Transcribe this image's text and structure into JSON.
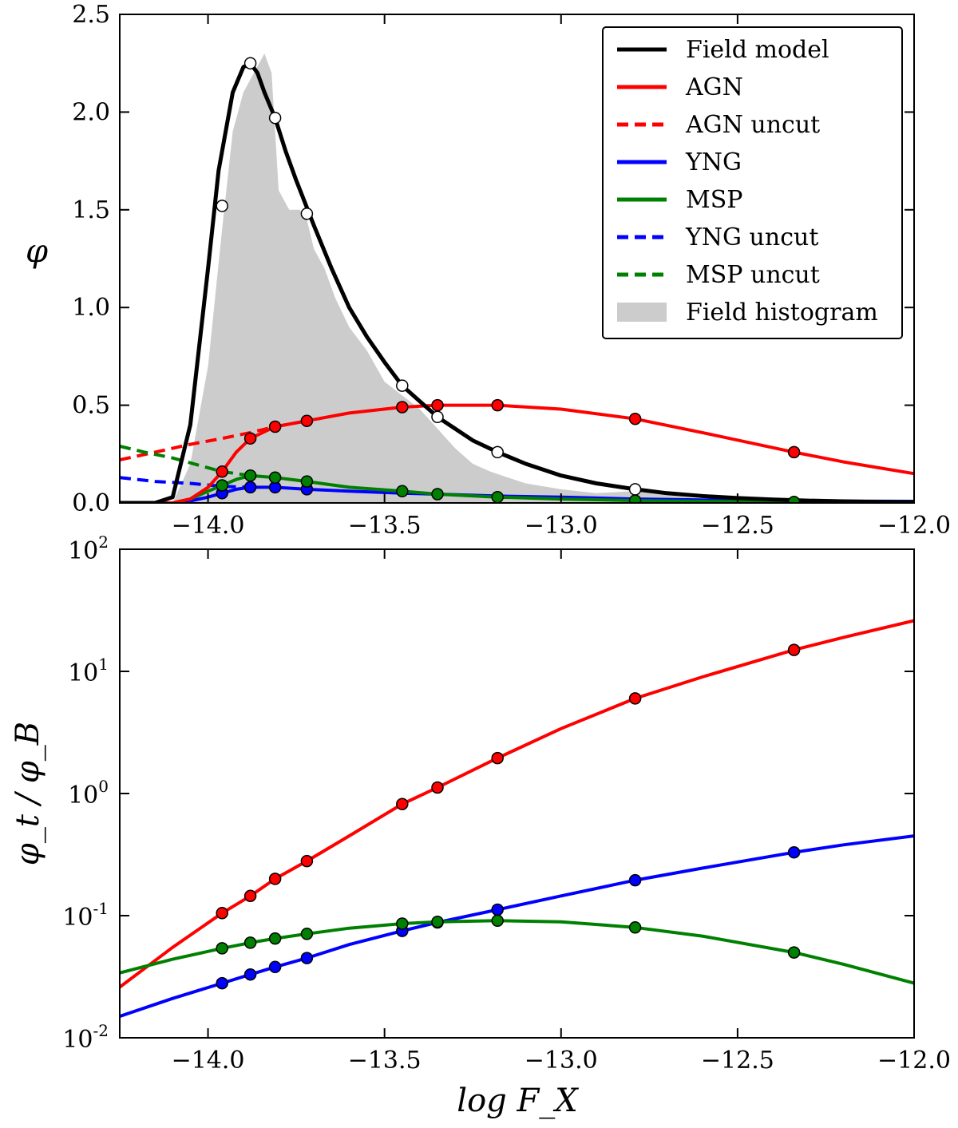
{
  "chart_data": [
    {
      "type": "line",
      "panel": "top",
      "title": "",
      "xlabel": "",
      "ylabel": "φ",
      "xlim": [
        -14.25,
        -12.0
      ],
      "ylim": [
        0.0,
        2.5
      ],
      "xticks": [
        -14.0,
        -13.5,
        -13.0,
        -12.5,
        -12.0
      ],
      "xtick_labels": [
        "−14.0",
        "−13.5",
        "−13.0",
        "−12.5",
        "−12.0"
      ],
      "yticks": [
        0.0,
        0.5,
        1.0,
        1.5,
        2.0,
        2.5
      ],
      "ytick_labels": [
        "0.0",
        "0.5",
        "1.0",
        "1.5",
        "2.0",
        "2.5"
      ],
      "legend_position": "top-right",
      "legend": [
        {
          "key": "field_model",
          "label": "Field model",
          "color": "#000000",
          "style": "solid"
        },
        {
          "key": "agn",
          "label": "AGN",
          "color": "#ff0000",
          "style": "solid"
        },
        {
          "key": "agn_uncut",
          "label": "AGN uncut",
          "color": "#ff0000",
          "style": "dashed"
        },
        {
          "key": "yng",
          "label": "YNG",
          "color": "#0000ff",
          "style": "solid"
        },
        {
          "key": "msp",
          "label": "MSP",
          "color": "#008000",
          "style": "solid"
        },
        {
          "key": "yng_uncut",
          "label": "YNG uncut",
          "color": "#0000ff",
          "style": "dashed"
        },
        {
          "key": "msp_uncut",
          "label": "MSP uncut",
          "color": "#008000",
          "style": "dashed"
        },
        {
          "key": "histogram",
          "label": "Field histogram",
          "color": "#cccccc",
          "style": "fill"
        }
      ],
      "histogram": {
        "name": "Field histogram",
        "color": "#cccccc",
        "x": [
          -14.1,
          -14.05,
          -14.0,
          -13.96,
          -13.93,
          -13.9,
          -13.87,
          -13.84,
          -13.82,
          -13.8,
          -13.77,
          -13.74,
          -13.72,
          -13.7,
          -13.67,
          -13.64,
          -13.6,
          -13.55,
          -13.5,
          -13.45,
          -13.4,
          -13.35,
          -13.3,
          -13.25,
          -13.2,
          -13.15,
          -13.1,
          -13.0,
          -12.9,
          -12.8,
          -12.7,
          -12.6,
          -12.5,
          -12.4
        ],
        "y": [
          0.0,
          0.2,
          0.7,
          1.4,
          1.9,
          2.1,
          2.2,
          2.3,
          2.2,
          1.6,
          1.5,
          1.5,
          1.45,
          1.3,
          1.2,
          1.05,
          0.9,
          0.78,
          0.62,
          0.55,
          0.48,
          0.38,
          0.28,
          0.2,
          0.16,
          0.13,
          0.1,
          0.07,
          0.05,
          0.06,
          0.04,
          0.02,
          0.01,
          0.0
        ]
      },
      "series": [
        {
          "key": "field_model",
          "name": "Field model",
          "color": "#000000",
          "style": "solid",
          "x": [
            -14.25,
            -14.2,
            -14.15,
            -14.1,
            -14.05,
            -14.0,
            -13.97,
            -13.93,
            -13.9,
            -13.88,
            -13.86,
            -13.84,
            -13.81,
            -13.78,
            -13.75,
            -13.7,
            -13.65,
            -13.6,
            -13.55,
            -13.5,
            -13.45,
            -13.4,
            -13.35,
            -13.3,
            -13.25,
            -13.18,
            -13.1,
            -13.0,
            -12.9,
            -12.79,
            -12.7,
            -12.6,
            -12.5,
            -12.4,
            -12.3,
            -12.2,
            -12.1,
            -12.0
          ],
          "y": [
            0.0,
            0.0,
            0.0,
            0.03,
            0.4,
            1.2,
            1.7,
            2.1,
            2.23,
            2.25,
            2.2,
            2.1,
            1.97,
            1.8,
            1.65,
            1.42,
            1.2,
            1.0,
            0.85,
            0.72,
            0.6,
            0.52,
            0.44,
            0.38,
            0.32,
            0.26,
            0.2,
            0.14,
            0.1,
            0.07,
            0.05,
            0.035,
            0.025,
            0.017,
            0.012,
            0.008,
            0.005,
            0.004
          ],
          "markers": {
            "x": [
              -13.96,
              -13.88,
              -13.81,
              -13.72,
              -13.45,
              -13.35,
              -13.18,
              -12.79
            ],
            "y": [
              1.52,
              2.25,
              1.97,
              1.48,
              0.6,
              0.44,
              0.26,
              0.07
            ],
            "fill": "#ffffff"
          }
        },
        {
          "key": "agn",
          "name": "AGN",
          "color": "#ff0000",
          "style": "solid",
          "x": [
            -14.25,
            -14.1,
            -14.05,
            -14.0,
            -13.96,
            -13.92,
            -13.88,
            -13.81,
            -13.72,
            -13.6,
            -13.45,
            -13.35,
            -13.25,
            -13.18,
            -13.0,
            -12.79,
            -12.6,
            -12.34,
            -12.2,
            -12.0
          ],
          "y": [
            0.0,
            0.0,
            0.02,
            0.08,
            0.16,
            0.26,
            0.33,
            0.39,
            0.42,
            0.46,
            0.49,
            0.5,
            0.5,
            0.5,
            0.48,
            0.43,
            0.36,
            0.26,
            0.21,
            0.15
          ],
          "markers": {
            "x": [
              -13.96,
              -13.88,
              -13.81,
              -13.72,
              -13.45,
              -13.35,
              -13.18,
              -12.79,
              -12.34
            ],
            "y": [
              0.16,
              0.33,
              0.39,
              0.42,
              0.49,
              0.5,
              0.5,
              0.43,
              0.26
            ],
            "fill": "#ff0000"
          }
        },
        {
          "key": "agn_uncut",
          "name": "AGN uncut",
          "color": "#ff0000",
          "style": "dashed",
          "x": [
            -14.25,
            -14.15,
            -14.05,
            -13.96,
            -13.88,
            -13.81,
            -13.72
          ],
          "y": [
            0.22,
            0.26,
            0.3,
            0.33,
            0.36,
            0.39,
            0.42
          ]
        },
        {
          "key": "yng",
          "name": "YNG",
          "color": "#0000ff",
          "style": "solid",
          "x": [
            -14.25,
            -14.1,
            -14.05,
            -14.0,
            -13.96,
            -13.92,
            -13.88,
            -13.81,
            -13.72,
            -13.6,
            -13.45,
            -13.35,
            -13.18,
            -13.0,
            -12.79,
            -12.6,
            -12.34,
            -12.0
          ],
          "y": [
            0.0,
            0.0,
            0.01,
            0.03,
            0.05,
            0.07,
            0.08,
            0.08,
            0.07,
            0.06,
            0.05,
            0.045,
            0.035,
            0.03,
            0.02,
            0.015,
            0.01,
            0.008
          ],
          "markers": {
            "x": [
              -13.96,
              -13.88,
              -13.81,
              -13.72
            ],
            "y": [
              0.05,
              0.08,
              0.08,
              0.07
            ],
            "fill": "#0000ff"
          }
        },
        {
          "key": "msp",
          "name": "MSP",
          "color": "#008000",
          "style": "solid",
          "x": [
            -14.25,
            -14.1,
            -14.05,
            -14.0,
            -13.96,
            -13.92,
            -13.88,
            -13.81,
            -13.72,
            -13.6,
            -13.45,
            -13.35,
            -13.18,
            -13.0,
            -12.79,
            -12.6,
            -12.34,
            -12.0
          ],
          "y": [
            0.0,
            0.0,
            0.02,
            0.06,
            0.09,
            0.12,
            0.14,
            0.13,
            0.11,
            0.08,
            0.06,
            0.045,
            0.03,
            0.02,
            0.012,
            0.008,
            0.005,
            0.003
          ],
          "markers": {
            "x": [
              -13.96,
              -13.88,
              -13.81,
              -13.72,
              -13.45,
              -13.35,
              -13.18,
              -12.79,
              -12.34
            ],
            "y": [
              0.09,
              0.14,
              0.13,
              0.11,
              0.06,
              0.045,
              0.03,
              0.012,
              0.005
            ],
            "fill": "#008000"
          }
        },
        {
          "key": "yng_uncut",
          "name": "YNG uncut",
          "color": "#0000ff",
          "style": "dashed",
          "x": [
            -14.25,
            -14.15,
            -14.05,
            -13.96,
            -13.88
          ],
          "y": [
            0.13,
            0.11,
            0.1,
            0.085,
            0.08
          ]
        },
        {
          "key": "msp_uncut",
          "name": "MSP uncut",
          "color": "#008000",
          "style": "dashed",
          "x": [
            -14.25,
            -14.18,
            -14.1,
            -14.02,
            -13.96,
            -13.88
          ],
          "y": [
            0.29,
            0.26,
            0.23,
            0.19,
            0.16,
            0.14
          ]
        }
      ]
    },
    {
      "type": "line",
      "panel": "bottom",
      "title": "",
      "xlabel": "log F_X",
      "ylabel": "φ_t / φ_B",
      "yscale": "log",
      "xlim": [
        -14.25,
        -12.0
      ],
      "ylim": [
        0.01,
        100
      ],
      "xticks": [
        -14.0,
        -13.5,
        -13.0,
        -12.5,
        -12.0
      ],
      "xtick_labels": [
        "−14.0",
        "−13.5",
        "−13.0",
        "−12.5",
        "−12.0"
      ],
      "yticks": [
        0.01,
        0.1,
        1,
        10,
        100
      ],
      "ytick_labels": [
        {
          "base": "10",
          "exp": "-2"
        },
        {
          "base": "10",
          "exp": "-1"
        },
        {
          "base": "10",
          "exp": "0"
        },
        {
          "base": "10",
          "exp": "1"
        },
        {
          "base": "10",
          "exp": "2"
        }
      ],
      "series": [
        {
          "key": "agn",
          "name": "AGN",
          "color": "#ff0000",
          "x": [
            -14.25,
            -14.1,
            -13.96,
            -13.88,
            -13.81,
            -13.72,
            -13.6,
            -13.45,
            -13.35,
            -13.18,
            -13.0,
            -12.79,
            -12.6,
            -12.34,
            -12.2,
            -12.0
          ],
          "y": [
            0.026,
            0.055,
            0.105,
            0.145,
            0.2,
            0.28,
            0.45,
            0.82,
            1.12,
            1.95,
            3.4,
            6.0,
            9.0,
            15.0,
            19.0,
            26.0
          ],
          "markers": {
            "x": [
              -13.96,
              -13.88,
              -13.81,
              -13.72,
              -13.45,
              -13.35,
              -13.18,
              -12.79,
              -12.34
            ],
            "y": [
              0.105,
              0.145,
              0.2,
              0.28,
              0.82,
              1.12,
              1.95,
              6.0,
              15.0
            ]
          }
        },
        {
          "key": "yng",
          "name": "YNG",
          "color": "#0000ff",
          "x": [
            -14.25,
            -14.1,
            -13.96,
            -13.88,
            -13.81,
            -13.72,
            -13.6,
            -13.45,
            -13.35,
            -13.18,
            -13.0,
            -12.79,
            -12.6,
            -12.34,
            -12.2,
            -12.0
          ],
          "y": [
            0.015,
            0.021,
            0.028,
            0.033,
            0.038,
            0.045,
            0.058,
            0.075,
            0.088,
            0.112,
            0.145,
            0.195,
            0.245,
            0.33,
            0.38,
            0.45
          ],
          "markers": {
            "x": [
              -13.96,
              -13.88,
              -13.81,
              -13.72,
              -13.45,
              -13.35,
              -13.18,
              -12.79,
              -12.34
            ],
            "y": [
              0.028,
              0.033,
              0.038,
              0.045,
              0.075,
              0.088,
              0.112,
              0.195,
              0.33
            ]
          }
        },
        {
          "key": "msp",
          "name": "MSP",
          "color": "#008000",
          "x": [
            -14.25,
            -14.1,
            -13.96,
            -13.88,
            -13.81,
            -13.72,
            -13.6,
            -13.45,
            -13.35,
            -13.18,
            -13.0,
            -12.79,
            -12.6,
            -12.34,
            -12.2,
            -12.0
          ],
          "y": [
            0.034,
            0.044,
            0.054,
            0.06,
            0.065,
            0.071,
            0.079,
            0.086,
            0.089,
            0.091,
            0.089,
            0.08,
            0.068,
            0.05,
            0.04,
            0.028
          ],
          "markers": {
            "x": [
              -13.96,
              -13.88,
              -13.81,
              -13.72,
              -13.45,
              -13.35,
              -13.18,
              -12.79,
              -12.34
            ],
            "y": [
              0.054,
              0.06,
              0.065,
              0.071,
              0.086,
              0.089,
              0.091,
              0.08,
              0.05
            ]
          }
        }
      ]
    }
  ]
}
